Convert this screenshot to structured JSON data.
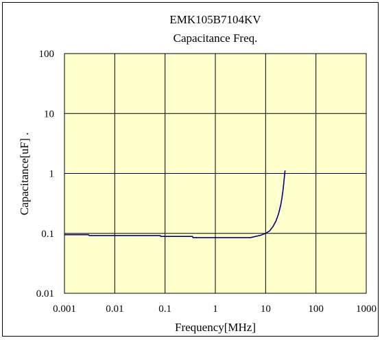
{
  "chart_data": {
    "type": "line",
    "title": "EMK105B7104KV",
    "subtitle": "Capacitance Freq.",
    "xlabel": "Frequency[MHz]",
    "ylabel": "Capacitance[uF] .",
    "xscale": "log",
    "yscale": "log",
    "xlim": [
      0.001,
      1000
    ],
    "ylim": [
      0.01,
      100
    ],
    "xticks": [
      0.001,
      0.01,
      0.1,
      1,
      10,
      100,
      1000
    ],
    "xtick_labels": [
      "0.001",
      "0.01",
      "0.1",
      "1",
      "10",
      "100",
      "1000"
    ],
    "yticks": [
      0.01,
      0.1,
      1,
      10,
      100
    ],
    "ytick_labels": [
      "0.01",
      "0.1",
      "1",
      "10",
      "100"
    ],
    "grid": true,
    "plot_background": "#ffffcc",
    "line_color": "#000080",
    "series": [
      {
        "x": [
          0.001,
          0.003,
          0.0031,
          0.08,
          0.082,
          0.35,
          0.36,
          1,
          5,
          6,
          8,
          10,
          12,
          14,
          16,
          18,
          20,
          21,
          22,
          23,
          23.5,
          24,
          24.3
        ],
        "values": [
          0.095,
          0.095,
          0.092,
          0.092,
          0.089,
          0.089,
          0.085,
          0.085,
          0.085,
          0.088,
          0.093,
          0.1,
          0.11,
          0.13,
          0.16,
          0.21,
          0.3,
          0.38,
          0.5,
          0.7,
          0.85,
          1.0,
          1.12
        ]
      }
    ]
  }
}
